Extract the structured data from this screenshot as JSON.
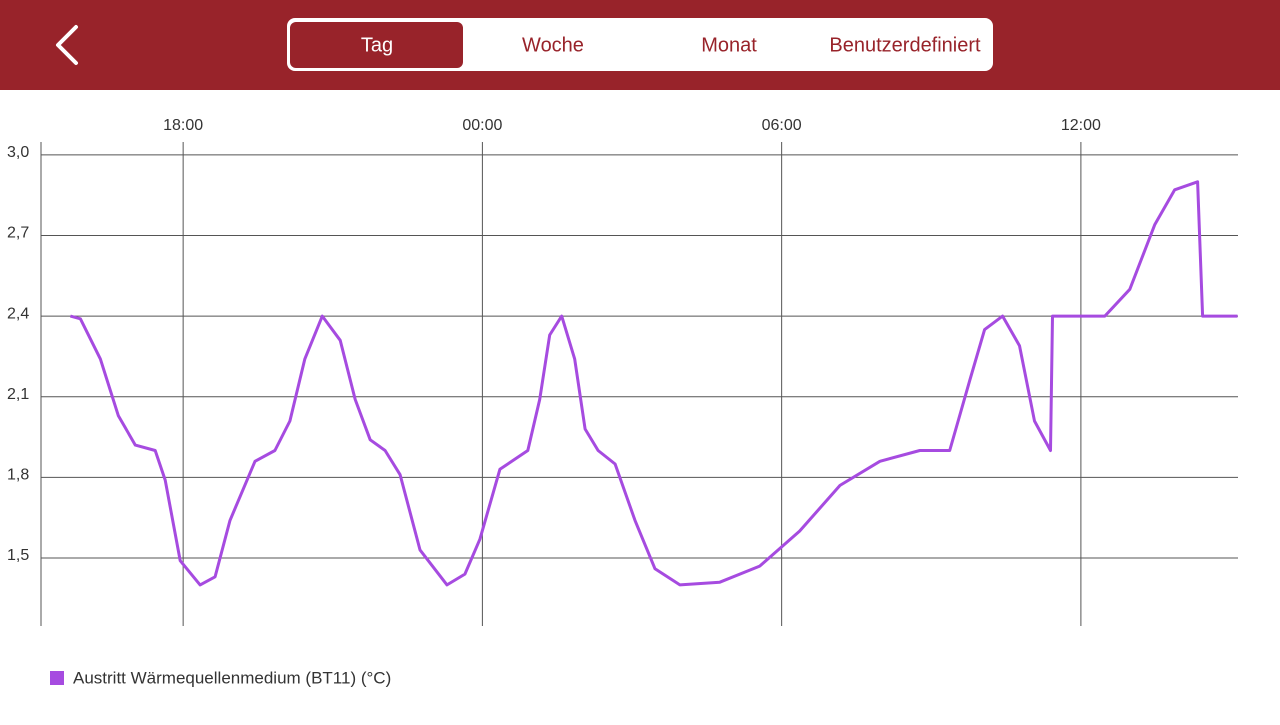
{
  "header": {
    "tabs": [
      "Tag",
      "Woche",
      "Monat",
      "Benutzerdefiniert"
    ],
    "selected_tab": 0
  },
  "chart_data": {
    "type": "line",
    "x": [
      15.74,
      15.94,
      16.34,
      16.7,
      17.04,
      17.44,
      17.64,
      17.94,
      18.34,
      18.64,
      18.94,
      19.44,
      19.84,
      20.14,
      20.44,
      20.79,
      21.15,
      21.45,
      21.75,
      22.05,
      22.35,
      22.75,
      23.29,
      23.65,
      23.95,
      24.35,
      24.91,
      25.15,
      25.35,
      25.59,
      25.85,
      26.06,
      26.32,
      26.66,
      27.06,
      27.46,
      27.96,
      28.76,
      29.56,
      30.36,
      31.17,
      31.97,
      32.77,
      33.37,
      33.77,
      34.07,
      34.43,
      34.77,
      35.07,
      35.39,
      35.43,
      36.48,
      36.98,
      37.48,
      37.88,
      38.34,
      38.44,
      39.14
    ],
    "series": [
      {
        "name": "Austritt Wärmequellenmedium (BT11) (°C)",
        "color": "#a64be0",
        "values": [
          2.4,
          2.39,
          2.24,
          2.03,
          1.92,
          1.9,
          1.79,
          1.49,
          1.4,
          1.43,
          1.64,
          1.86,
          1.9,
          2.01,
          2.24,
          2.4,
          2.31,
          2.09,
          1.94,
          1.9,
          1.81,
          1.53,
          1.4,
          1.44,
          1.57,
          1.83,
          1.9,
          2.09,
          2.33,
          2.4,
          2.24,
          1.98,
          1.9,
          1.85,
          1.64,
          1.46,
          1.4,
          1.41,
          1.47,
          1.6,
          1.77,
          1.86,
          1.9,
          1.9,
          2.16,
          2.35,
          2.4,
          2.29,
          2.01,
          1.9,
          2.4,
          2.4,
          2.5,
          2.74,
          2.87,
          2.9,
          2.4,
          2.4
        ]
      }
    ],
    "xlim": [
      15.15,
      39.15
    ],
    "xticks": [
      {
        "value": 18,
        "label": "18:00"
      },
      {
        "value": 24,
        "label": "00:00"
      },
      {
        "value": 30,
        "label": "06:00"
      },
      {
        "value": 36,
        "label": "12:00"
      }
    ],
    "ylim": [
      1.247,
      3.048
    ],
    "yticks": [
      {
        "value": 1.5,
        "label": "1,5"
      },
      {
        "value": 1.8,
        "label": "1,8"
      },
      {
        "value": 2.1,
        "label": "2,1"
      },
      {
        "value": 2.4,
        "label": "2,4"
      },
      {
        "value": 2.7,
        "label": "2,7"
      },
      {
        "value": 3.0,
        "label": "3,0"
      }
    ],
    "grid": true
  }
}
